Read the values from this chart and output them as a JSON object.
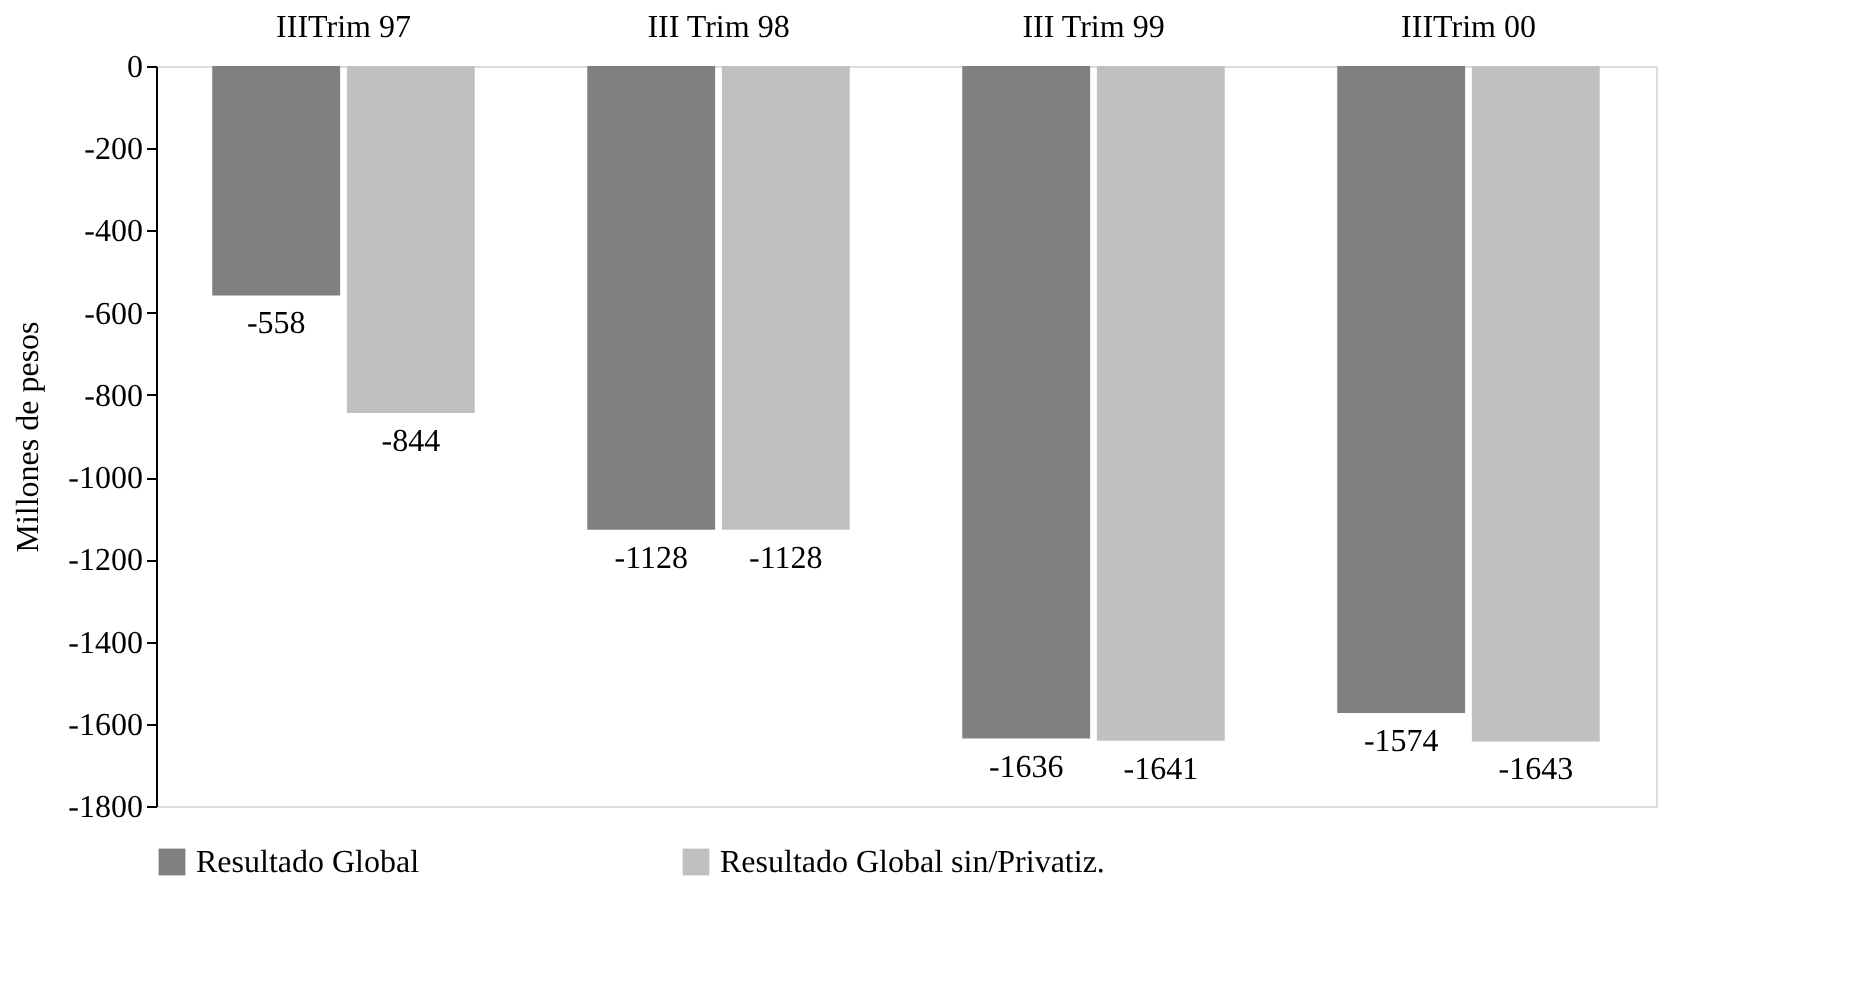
{
  "chart_data": {
    "type": "bar",
    "ylabel": "Millones de pesos",
    "categories": [
      "IIITrim 97",
      "III Trim 98",
      "III Trim 99",
      "IIITrim 00"
    ],
    "series": [
      {
        "name": "Resultado Global",
        "color": "#808080",
        "values": [
          -558,
          -1128,
          -1636,
          -1574
        ]
      },
      {
        "name": "Resultado Global sin/Privatiz.",
        "color": "#c0c0c0",
        "values": [
          -844,
          -1128,
          -1641,
          -1643
        ]
      }
    ],
    "ylim": [
      -1800,
      0
    ],
    "yticks": [
      0,
      -200,
      -400,
      -600,
      -800,
      -1000,
      -1200,
      -1400,
      -1600,
      -1800
    ],
    "grid": false,
    "legend": "bottom",
    "data_labels": true
  }
}
